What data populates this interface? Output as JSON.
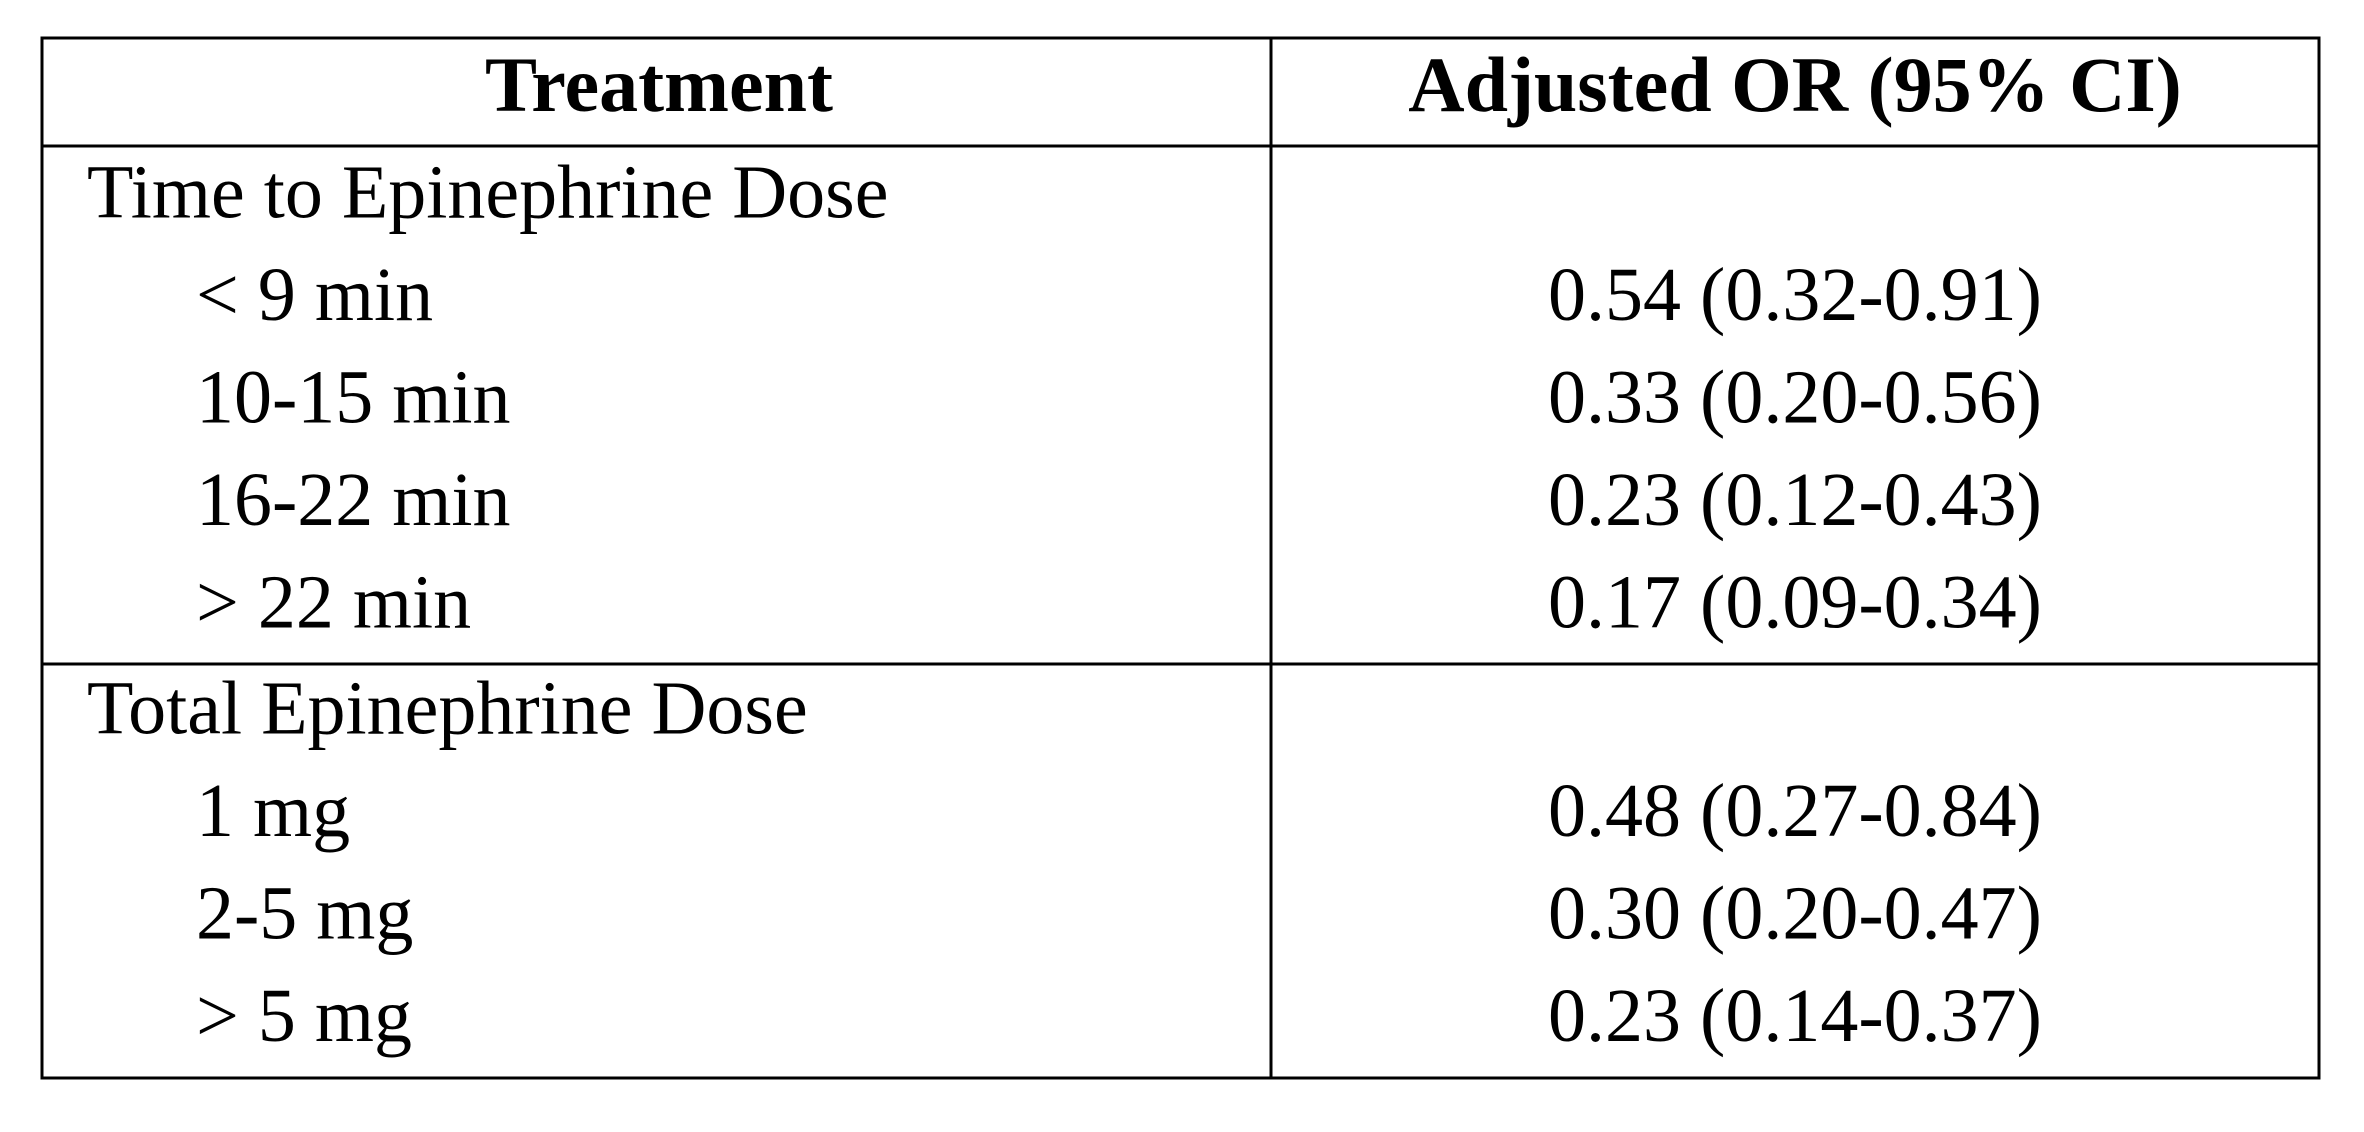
{
  "table": {
    "header": [
      "Treatment",
      "Adjusted OR (95% CI)"
    ],
    "sections": [
      {
        "title": "Time to Epinephrine Dose",
        "rows": [
          [
            "< 9 min",
            "0.54 (0.32-0.91)"
          ],
          [
            "10-15 min",
            "0.33 (0.20-0.56)"
          ],
          [
            "16-22 min",
            "0.23 (0.12-0.43)"
          ],
          [
            "> 22 min",
            "0.17 (0.09-0.34)"
          ]
        ]
      },
      {
        "title": "Total Epinephrine Dose",
        "rows": [
          [
            "1 mg",
            "0.48 (0.27-0.84)"
          ],
          [
            "2-5 mg",
            "0.30 (0.20-0.47)"
          ],
          [
            "> 5 mg",
            "0.23 (0.14-0.37)"
          ]
        ]
      }
    ]
  }
}
